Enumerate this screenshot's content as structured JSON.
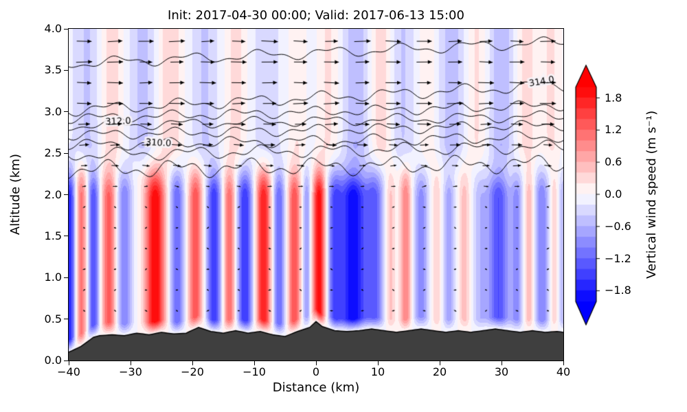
{
  "figure": {
    "background": "#ffffff"
  },
  "colors": {
    "terrain": "#3f3f3f",
    "contour_line": "#000000",
    "arrow": "#000000",
    "frame": "#000000"
  },
  "chart_data": {
    "type": "heatmap",
    "title": "Init: 2017-04-30 00:00; Valid: 2017-06-13 15:00",
    "xlabel": "Distance (km)",
    "ylabel": "Altitude (km)",
    "xlim": [
      -40,
      40
    ],
    "ylim": [
      0,
      4
    ],
    "xticks": [
      -40,
      -30,
      -20,
      -10,
      0,
      10,
      20,
      30,
      40
    ],
    "xtick_labels": [
      "−40",
      "−30",
      "−20",
      "−10",
      "0",
      "10",
      "20",
      "30",
      "40"
    ],
    "yticks": [
      0,
      0.5,
      1,
      1.5,
      2,
      2.5,
      3,
      3.5,
      4
    ],
    "ytick_labels": [
      "0.0",
      "0.5",
      "1.0",
      "1.5",
      "2.0",
      "2.5",
      "3.0",
      "3.5",
      "4.0"
    ],
    "colorbar": {
      "label": "Vertical wind speed (m s⁻¹)",
      "vmin": -2.0,
      "vmax": 2.0,
      "level_step": 0.2,
      "extend": "both",
      "ticks": [
        1.8,
        1.2,
        0.6,
        0,
        -0.6,
        -1.2,
        -1.8
      ],
      "tick_labels": [
        "1.8",
        "1.2",
        "0.6",
        "0.0",
        "−0.6",
        "−1.2",
        "−1.8"
      ]
    },
    "updraft_bumps": [
      [
        -40,
        -1.8,
        1.2
      ],
      [
        -38,
        1.2,
        1.0
      ],
      [
        -36,
        -1.4,
        1.0
      ],
      [
        -33.5,
        1.3,
        1.2
      ],
      [
        -31,
        -1.0,
        1.3
      ],
      [
        -26,
        2.0,
        1.6
      ],
      [
        -22.5,
        -1.2,
        1.2
      ],
      [
        -19.5,
        1.4,
        1.1
      ],
      [
        -16.5,
        -1.6,
        1.2
      ],
      [
        -14,
        1.2,
        1.0
      ],
      [
        -11.5,
        -1.6,
        1.3
      ],
      [
        -8.5,
        1.8,
        1.2
      ],
      [
        -6,
        -1.2,
        1.0
      ],
      [
        -3.5,
        1.4,
        1.0
      ],
      [
        -1.5,
        -0.8,
        0.7
      ],
      [
        0.5,
        2.0,
        1.0
      ],
      [
        3,
        -1.2,
        1.2
      ],
      [
        6,
        -2.0,
        2.2
      ],
      [
        9.5,
        -1.2,
        1.5
      ],
      [
        12,
        0.5,
        0.8
      ],
      [
        14.5,
        1.0,
        0.9
      ],
      [
        17,
        -0.9,
        1.2
      ],
      [
        19.5,
        0.4,
        0.8
      ],
      [
        21.5,
        -0.7,
        1.0
      ],
      [
        24,
        0.5,
        0.9
      ],
      [
        26.5,
        -0.5,
        1.2
      ],
      [
        29.5,
        -1.4,
        1.8
      ],
      [
        32.5,
        -0.8,
        1.0
      ],
      [
        34.5,
        0.6,
        0.8
      ],
      [
        36.5,
        -1.0,
        1.2
      ],
      [
        38.5,
        0.4,
        0.7
      ],
      [
        40,
        -0.6,
        0.8
      ]
    ],
    "upper_base": -0.12,
    "upper_anomalies": [
      [
        -37,
        -0.3,
        2.0
      ],
      [
        -33,
        0.45,
        1.8
      ],
      [
        -28,
        -0.35,
        2.0
      ],
      [
        -23.5,
        0.5,
        2.0
      ],
      [
        -18,
        -0.3,
        2.0
      ],
      [
        -13,
        0.4,
        1.8
      ],
      [
        -8,
        -0.25,
        1.8
      ],
      [
        -3,
        0.3,
        1.5
      ],
      [
        2,
        0.35,
        1.8
      ],
      [
        6.5,
        -0.45,
        2.0
      ],
      [
        10.5,
        0.45,
        1.8
      ],
      [
        14,
        -0.3,
        1.8
      ],
      [
        18,
        0.3,
        1.5
      ],
      [
        22,
        -0.4,
        2.0
      ],
      [
        26,
        0.35,
        1.8
      ],
      [
        30,
        -0.45,
        2.0
      ],
      [
        34,
        0.4,
        1.8
      ],
      [
        38,
        0.35,
        1.8
      ]
    ],
    "terrain_profile": [
      [
        -40,
        0.1
      ],
      [
        -38,
        0.17
      ],
      [
        -36,
        0.28
      ],
      [
        -35,
        0.3
      ],
      [
        -33,
        0.31
      ],
      [
        -31,
        0.3
      ],
      [
        -29,
        0.33
      ],
      [
        -27,
        0.31
      ],
      [
        -25,
        0.34
      ],
      [
        -23,
        0.32
      ],
      [
        -21,
        0.33
      ],
      [
        -19,
        0.4
      ],
      [
        -17,
        0.35
      ],
      [
        -15,
        0.33
      ],
      [
        -13,
        0.36
      ],
      [
        -11,
        0.33
      ],
      [
        -9,
        0.35
      ],
      [
        -7,
        0.31
      ],
      [
        -5,
        0.29
      ],
      [
        -3,
        0.35
      ],
      [
        -1,
        0.4
      ],
      [
        0,
        0.47
      ],
      [
        1,
        0.41
      ],
      [
        3,
        0.36
      ],
      [
        5,
        0.35
      ],
      [
        7,
        0.36
      ],
      [
        9,
        0.38
      ],
      [
        11,
        0.36
      ],
      [
        13,
        0.34
      ],
      [
        15,
        0.36
      ],
      [
        17,
        0.38
      ],
      [
        19,
        0.36
      ],
      [
        21,
        0.34
      ],
      [
        23,
        0.36
      ],
      [
        25,
        0.34
      ],
      [
        27,
        0.36
      ],
      [
        29,
        0.38
      ],
      [
        31,
        0.36
      ],
      [
        33,
        0.34
      ],
      [
        35,
        0.36
      ],
      [
        37,
        0.34
      ],
      [
        39,
        0.35
      ],
      [
        40,
        0.34
      ]
    ],
    "isentropes": {
      "lines": [
        {
          "b": 3.58,
          "r": 0.26,
          "a1": 0.05,
          "a2": 0.025,
          "p1": 0.3,
          "p2": 2.1
        },
        {
          "b": 3.02,
          "r": 0.3,
          "a1": 0.05,
          "a2": 0.03,
          "p1": 1.1,
          "p2": 0.4
        },
        {
          "b": 2.92,
          "r": 0.16,
          "a1": 0.04,
          "a2": 0.03,
          "p1": 2.0,
          "p2": 1.5
        },
        {
          "b": 2.83,
          "r": 0.12,
          "a1": 0.045,
          "a2": 0.025,
          "p1": 0.8,
          "p2": 2.6
        },
        {
          "b": 2.72,
          "r": 0.12,
          "a1": 0.04,
          "a2": 0.03,
          "p1": 1.7,
          "p2": 0.9
        },
        {
          "b": 2.6,
          "r": 0.1,
          "a1": 0.045,
          "a2": 0.03,
          "p1": 2.5,
          "p2": 1.8
        },
        {
          "b": 2.48,
          "r": 0.1,
          "a1": 0.05,
          "a2": 0.035,
          "p1": 0.1,
          "p2": 1.1
        },
        {
          "b": 2.3,
          "r": 0.08,
          "a1": 0.07,
          "a2": 0.05,
          "p1": 1.4,
          "p2": 2.9
        }
      ],
      "labels": [
        {
          "text": "310.0",
          "x": -25.5,
          "z": 2.62,
          "rot": 3
        },
        {
          "text": "312.0",
          "x": -32.0,
          "z": 2.88,
          "rot": -2
        },
        {
          "text": "314.0",
          "x": 36.5,
          "z": 3.36,
          "rot": -10
        }
      ]
    },
    "wind_arrows": {
      "seed": 7,
      "x_start": -37.5,
      "x_step": 5,
      "count": 16,
      "rows": [
        3.85,
        3.6,
        3.35,
        3.1,
        2.85,
        2.6,
        2.35,
        2.1,
        1.85,
        1.6,
        1.35,
        1.1,
        0.85,
        0.6
      ]
    }
  }
}
